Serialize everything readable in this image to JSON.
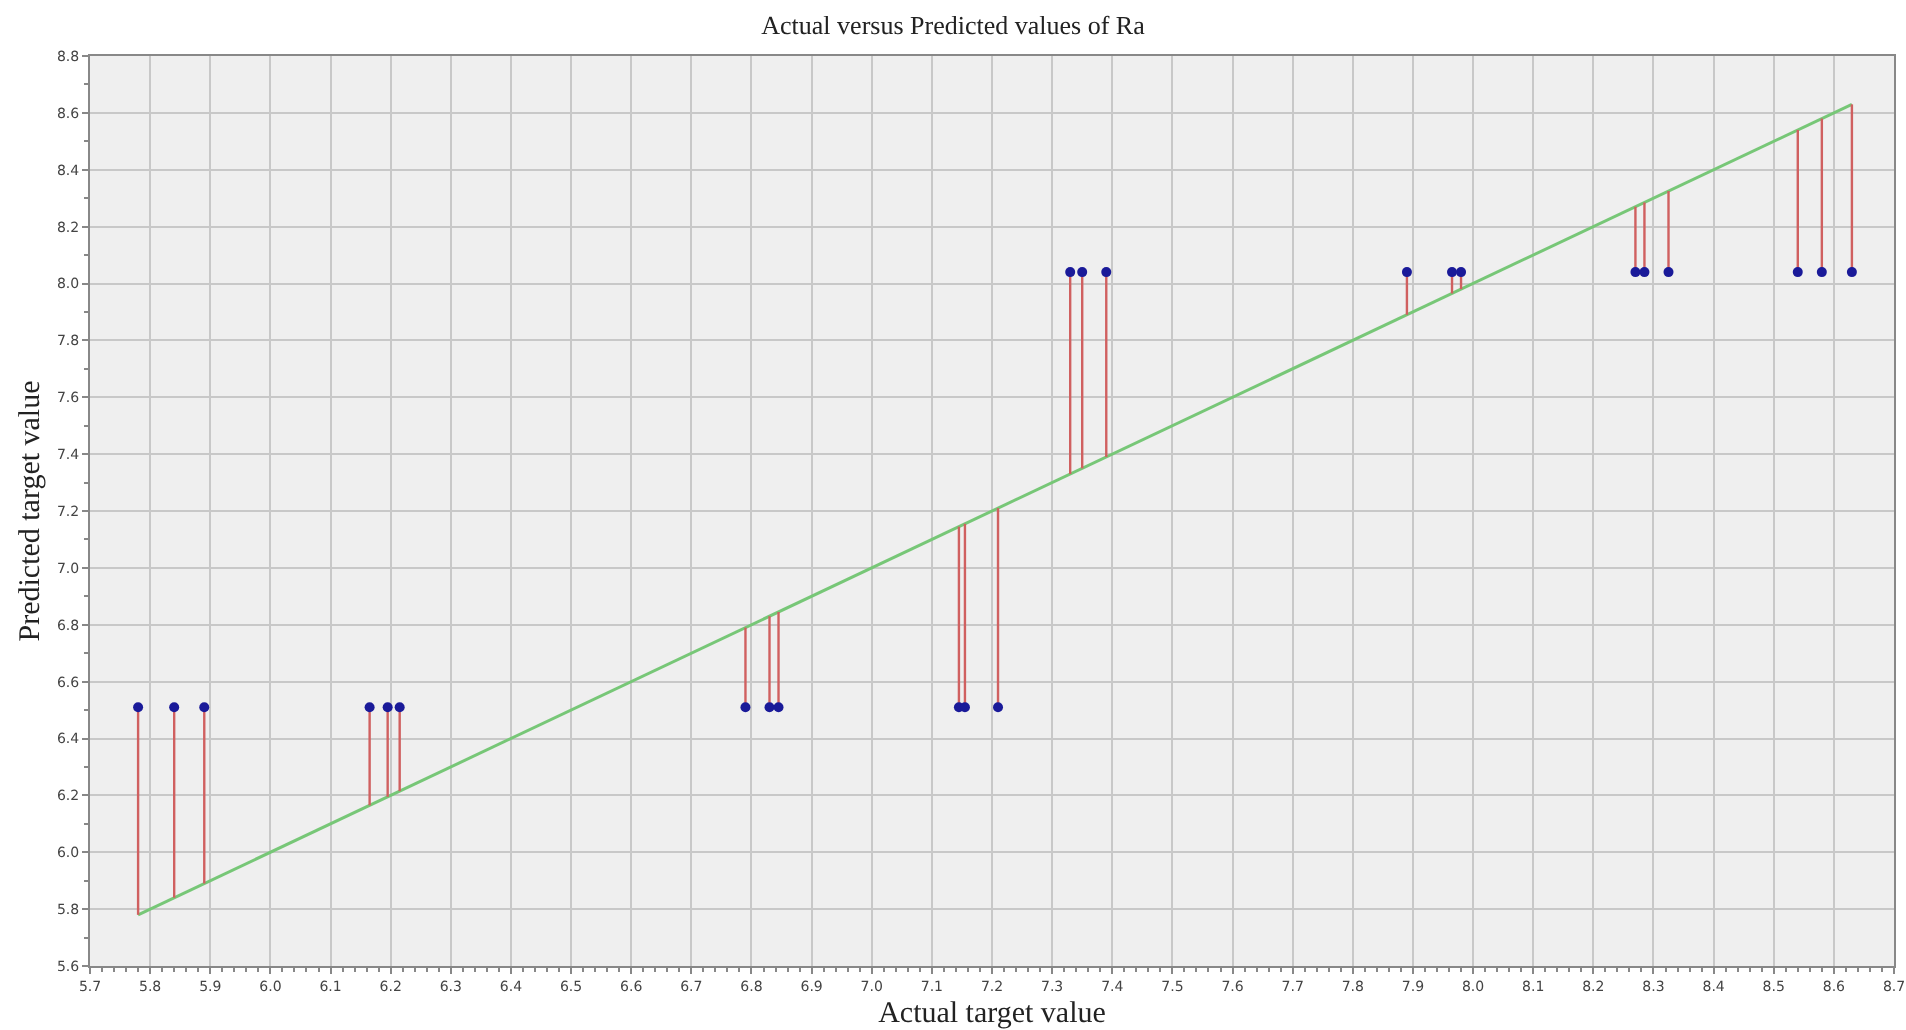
{
  "chart_data": {
    "type": "scatter",
    "title": "Actual versus Predicted values of Ra",
    "xlabel": "Actual target value",
    "ylabel": "Predicted target value",
    "series": [
      {
        "type": "line",
        "color": "#77c777",
        "x": [
          5.78,
          8.63
        ],
        "values": [
          5.78,
          8.63
        ]
      },
      {
        "color": "#1a1a99",
        "marker": "circle",
        "x": [
          5.78,
          5.84,
          5.89,
          6.165,
          6.195,
          6.215,
          6.79,
          6.83,
          6.845,
          7.145,
          7.155,
          7.21,
          7.33,
          7.35,
          7.39,
          7.89,
          7.965,
          7.98,
          8.27,
          8.285,
          8.325,
          8.54,
          8.58,
          8.63
        ],
        "values": [
          6.51,
          6.51,
          6.51,
          6.51,
          6.51,
          6.51,
          6.51,
          6.51,
          6.51,
          6.51,
          6.51,
          6.51,
          8.04,
          8.04,
          8.04,
          8.04,
          8.04,
          8.04,
          8.04,
          8.04,
          8.04,
          8.04,
          8.04,
          8.04
        ],
        "errors": [
          [
            5.78,
            6.51
          ],
          [
            5.84,
            6.51
          ],
          [
            5.89,
            6.51
          ],
          [
            6.165,
            6.51
          ],
          [
            6.195,
            6.51
          ],
          [
            6.215,
            6.51
          ],
          [
            6.51,
            6.79
          ],
          [
            6.51,
            6.83
          ],
          [
            6.51,
            6.845
          ],
          [
            6.51,
            7.145
          ],
          [
            6.51,
            7.155
          ],
          [
            6.51,
            7.21
          ],
          [
            7.33,
            8.04
          ],
          [
            7.35,
            8.04
          ],
          [
            7.39,
            8.04
          ],
          [
            7.89,
            8.04
          ],
          [
            7.965,
            8.04
          ],
          [
            7.98,
            8.04
          ],
          [
            8.04,
            8.27
          ],
          [
            8.04,
            8.285
          ],
          [
            8.04,
            8.325
          ],
          [
            8.04,
            8.54
          ],
          [
            8.04,
            8.58
          ],
          [
            8.04,
            8.63
          ]
        ]
      }
    ],
    "grid": true,
    "xlim": [
      5.7,
      8.7
    ],
    "xticks": [
      5.7,
      5.8,
      5.9,
      {
        "value": 6,
        "label": "6.0"
      },
      6.1,
      6.2,
      6.3,
      6.4,
      6.5,
      6.6,
      6.7,
      6.8,
      6.9,
      {
        "value": 7,
        "label": "7.0"
      },
      7.1,
      7.2,
      7.3,
      7.4,
      7.5,
      7.6,
      7.7,
      7.8,
      7.9,
      {
        "value": 8,
        "label": "8.0"
      },
      8.1,
      8.2,
      8.3,
      8.4,
      8.5,
      8.6,
      8.7
    ],
    "ylim": [
      5.6,
      8.8
    ],
    "yticks": [
      5.6,
      5.8,
      {
        "value": 6,
        "label": "6.0"
      },
      6.2,
      6.4,
      6.6,
      6.8,
      {
        "value": 7,
        "label": "7.0"
      },
      7.2,
      7.4,
      7.6,
      7.8,
      {
        "value": 8,
        "label": "8.0"
      },
      8.2,
      8.4,
      8.6,
      8.8
    ]
  }
}
